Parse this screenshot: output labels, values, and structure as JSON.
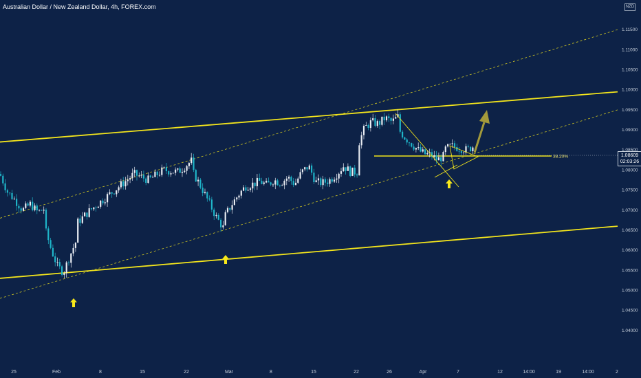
{
  "header": {
    "title": "Australian Dollar / New Zealand Dollar, 4h, FOREX.com",
    "currency": "NZD"
  },
  "price_tag": {
    "price": "1.08609",
    "countdown": "02:03:26"
  },
  "colors": {
    "background": "#0d2247",
    "channel": "#f2e41c",
    "candle_up": "#e8ecf2",
    "candle_down": "#1fb5c9",
    "projection_arrow": "#a39a3b",
    "marker_arrow": "#f7e81a"
  },
  "chart_data": {
    "type": "candlestick",
    "symbol": "AUDNZD",
    "interval": "4h",
    "ylim": [
      1.035,
      1.12
    ],
    "y_ticks": [
      "1.11500",
      "1.11000",
      "1.10500",
      "1.10000",
      "1.09500",
      "1.09000",
      "1.08500",
      "1.08000",
      "1.07500",
      "1.07000",
      "1.06500",
      "1.06000",
      "1.05500",
      "1.05000",
      "1.04500",
      "1.04000"
    ],
    "x_ticks": [
      "25",
      "Feb",
      "8",
      "15",
      "22",
      "Mar",
      "8",
      "15",
      "22",
      "26",
      "Apr",
      "7",
      "12",
      "14:00",
      "19",
      "14:00",
      "2"
    ],
    "price_path": [
      [
        1.079,
        1.0745,
        1.0725,
        1.07,
        1.0715,
        1.0695,
        1.0705
      ],
      [
        1.065,
        1.06,
        1.056,
        1.0545,
        1.0585,
        1.062
      ],
      [
        1.0665,
        1.07,
        1.073,
        1.076,
        1.079,
        1.0775,
        1.08,
        1.0795,
        1.0825
      ],
      [
        1.0795,
        1.076,
        1.072,
        1.068,
        1.065
      ],
      [
        1.0685,
        1.0715,
        1.074,
        1.076,
        1.0765,
        1.0772,
        1.0762,
        1.0775,
        1.0768,
        1.0782,
        1.0765,
        1.0795,
        1.081,
        1.077,
        1.0768,
        1.0775,
        1.079,
        1.081,
        1.0795,
        1.0795
      ],
      [
        1.086,
        1.0905,
        1.092,
        1.0915,
        1.093,
        1.092,
        1.0935
      ],
      [
        1.09,
        1.088,
        1.0865,
        1.085,
        1.084,
        1.0838,
        1.0825,
        1.0835
      ],
      [
        1.085,
        1.086,
        1.0855,
        1.085,
        1.0861
      ]
    ],
    "fib_level": {
      "label": "38.20%",
      "value": 1.0835
    },
    "channel_lines": [
      {
        "style": "solid",
        "from": [
          1.087
        ],
        "to": [
          1.0995
        ]
      },
      {
        "style": "solid",
        "from": [
          1.053
        ],
        "to": [
          1.066
        ]
      },
      {
        "style": "dashed",
        "from": [
          1.068
        ],
        "to": [
          1.115
        ]
      },
      {
        "style": "dashed",
        "from": [
          1.048
        ],
        "to": [
          1.095
        ]
      }
    ],
    "markers": [
      {
        "type": "up-arrow",
        "near_price": 1.0545
      },
      {
        "type": "up-arrow",
        "near_price": 1.0645
      },
      {
        "type": "up-arrow",
        "near_price": 1.082
      }
    ],
    "projection": {
      "direction": "up",
      "target": 1.0955
    }
  }
}
